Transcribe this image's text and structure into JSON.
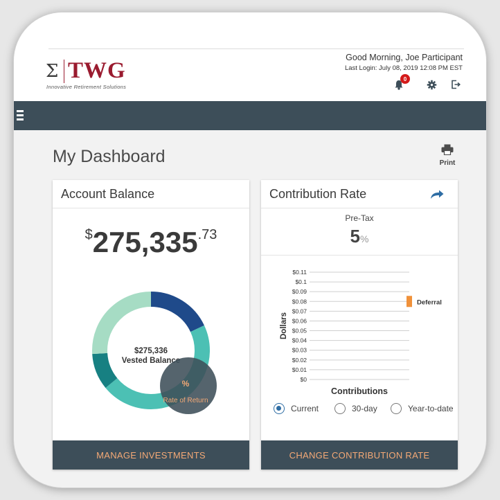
{
  "brand": {
    "symbol": "Σ",
    "name": "TWG",
    "tagline": "Innovative Retirement Solutions",
    "color": "#9a1b2f"
  },
  "header": {
    "greeting": "Good Morning,  Joe Participant",
    "last_login": "Last Login: July 08, 2019 12:08 PM EST",
    "notification_count": "0"
  },
  "page": {
    "title": "My Dashboard",
    "print_label": "Print"
  },
  "account_balance": {
    "title": "Account Balance",
    "currency": "$",
    "whole": "275,335",
    "cents": ".73",
    "vested_amount": "$275,336",
    "vested_label": "Vested Balance",
    "rate_symbol": "%",
    "rate_label": "Rate of Return",
    "footer_label": "MANAGE INVESTMENTS",
    "donut_segments": [
      {
        "color": "#1f4a8a",
        "fraction": 0.18
      },
      {
        "color": "#4cc0b4",
        "fraction": 0.46
      },
      {
        "color": "#178082",
        "fraction": 0.1
      },
      {
        "color": "#a6dcc4",
        "fraction": 0.26
      }
    ]
  },
  "contribution_rate": {
    "title": "Contribution Rate",
    "pretax_label": "Pre-Tax",
    "pretax_value": "5",
    "pretax_unit": "%",
    "footer_label": "CHANGE CONTRIBUTION RATE",
    "radios": [
      {
        "label": "Current",
        "selected": true
      },
      {
        "label": "30-day",
        "selected": false
      },
      {
        "label": "Year-to-date",
        "selected": false
      }
    ]
  },
  "chart_data": {
    "type": "bar",
    "categories": [
      ""
    ],
    "series": [
      {
        "name": "Deferral",
        "values": [
          0.08
        ],
        "color": "#f0913a"
      }
    ],
    "xlabel": "Contributions",
    "ylabel": "Dollars",
    "ylim": [
      0,
      0.11
    ],
    "yticks": [
      "$0",
      "$0.01",
      "$0.02",
      "$0.03",
      "$0.04",
      "$0.05",
      "$0.06",
      "$0.07",
      "$0.08",
      "$0.09",
      "$0.1",
      "$0.11"
    ],
    "grid": true,
    "legend": "inline-right"
  }
}
